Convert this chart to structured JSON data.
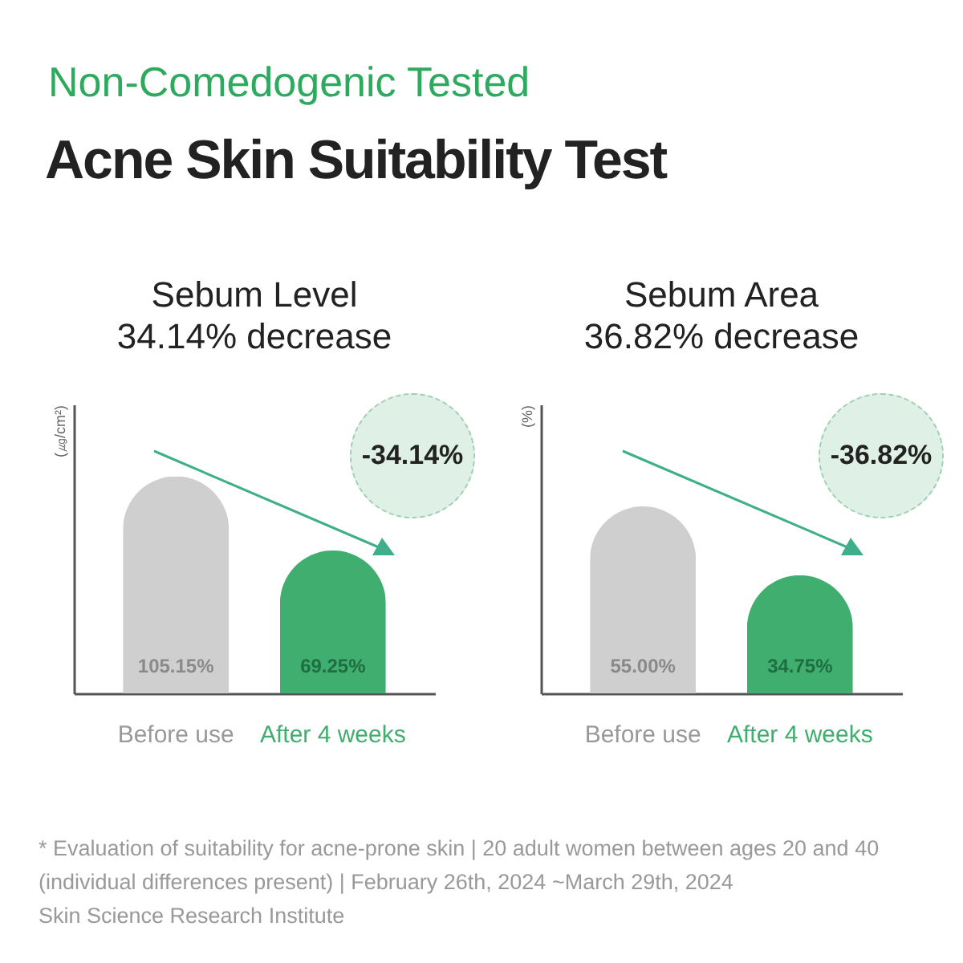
{
  "chart_data": [
    {
      "type": "other",
      "subtitle": "Non-Comedogenic Tested",
      "title": "Acne Skin Suitability Test"
    },
    {
      "type": "bar",
      "title": "Sebum Level",
      "subtitle": "34.14% decrease",
      "ylabel": "(㎍/cm²)",
      "categories": [
        "Before use",
        "After 4 weeks"
      ],
      "values": [
        105.15,
        69.25
      ],
      "colors": [
        "#cfcfcf",
        "#3fae6e"
      ],
      "value_labels": [
        "105.15%",
        "69.25%"
      ],
      "ylim": [
        0,
        140
      ],
      "annotations": [
        "-34.14%"
      ]
    },
    {
      "type": "bar",
      "title": "Sebum Area",
      "subtitle": "36.82% decrease",
      "ylabel": "(%)",
      "categories": [
        "Before use",
        "After 4 weeks"
      ],
      "values": [
        55.0,
        34.75
      ],
      "colors": [
        "#cfcfcf",
        "#3fae6e"
      ],
      "value_labels": [
        "55.00%",
        "34.75%"
      ],
      "ylim": [
        0,
        85
      ],
      "annotations": [
        "-36.82%"
      ]
    },
    {
      "type": "other",
      "annotations": [
        "* Evaluation of suitability for acne-prone skin | 20 adult women between ages 20 and 40 (individual differences present) | February 26th, 2024 ~March 29th, 2024",
        "Skin Science Research Institute"
      ]
    }
  ]
}
